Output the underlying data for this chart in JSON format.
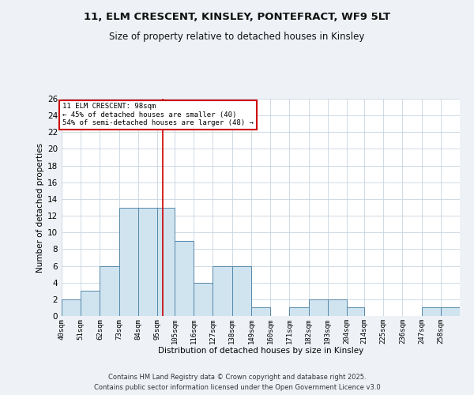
{
  "title_line1": "11, ELM CRESCENT, KINSLEY, PONTEFRACT, WF9 5LT",
  "title_line2": "Size of property relative to detached houses in Kinsley",
  "xlabel": "Distribution of detached houses by size in Kinsley",
  "ylabel": "Number of detached properties",
  "bin_labels": [
    "40sqm",
    "51sqm",
    "62sqm",
    "73sqm",
    "84sqm",
    "95sqm",
    "105sqm",
    "116sqm",
    "127sqm",
    "138sqm",
    "149sqm",
    "160sqm",
    "171sqm",
    "182sqm",
    "193sqm",
    "204sqm",
    "214sqm",
    "225sqm",
    "236sqm",
    "247sqm",
    "258sqm"
  ],
  "bin_edges": [
    40,
    51,
    62,
    73,
    84,
    95,
    105,
    116,
    127,
    138,
    149,
    160,
    171,
    182,
    193,
    204,
    214,
    225,
    236,
    247,
    258,
    269
  ],
  "counts": [
    2,
    3,
    6,
    13,
    13,
    13,
    9,
    4,
    6,
    6,
    1,
    0,
    1,
    2,
    2,
    1,
    0,
    0,
    0,
    1,
    1
  ],
  "property_size": 98,
  "bar_color": "#d0e4f0",
  "bar_edge_color": "#5588aa",
  "line_color": "#cc0000",
  "annotation_text": "11 ELM CRESCENT: 98sqm\n← 45% of detached houses are smaller (40)\n54% of semi-detached houses are larger (48) →",
  "annotation_box_color": "#ffffff",
  "annotation_box_edge": "#cc0000",
  "ylim": [
    0,
    26
  ],
  "yticks": [
    0,
    2,
    4,
    6,
    8,
    10,
    12,
    14,
    16,
    18,
    20,
    22,
    24,
    26
  ],
  "footer_line1": "Contains HM Land Registry data © Crown copyright and database right 2025.",
  "footer_line2": "Contains public sector information licensed under the Open Government Licence v3.0",
  "background_color": "#eef2f7",
  "plot_bg_color": "#ffffff",
  "grid_color": "#c8d4e0"
}
